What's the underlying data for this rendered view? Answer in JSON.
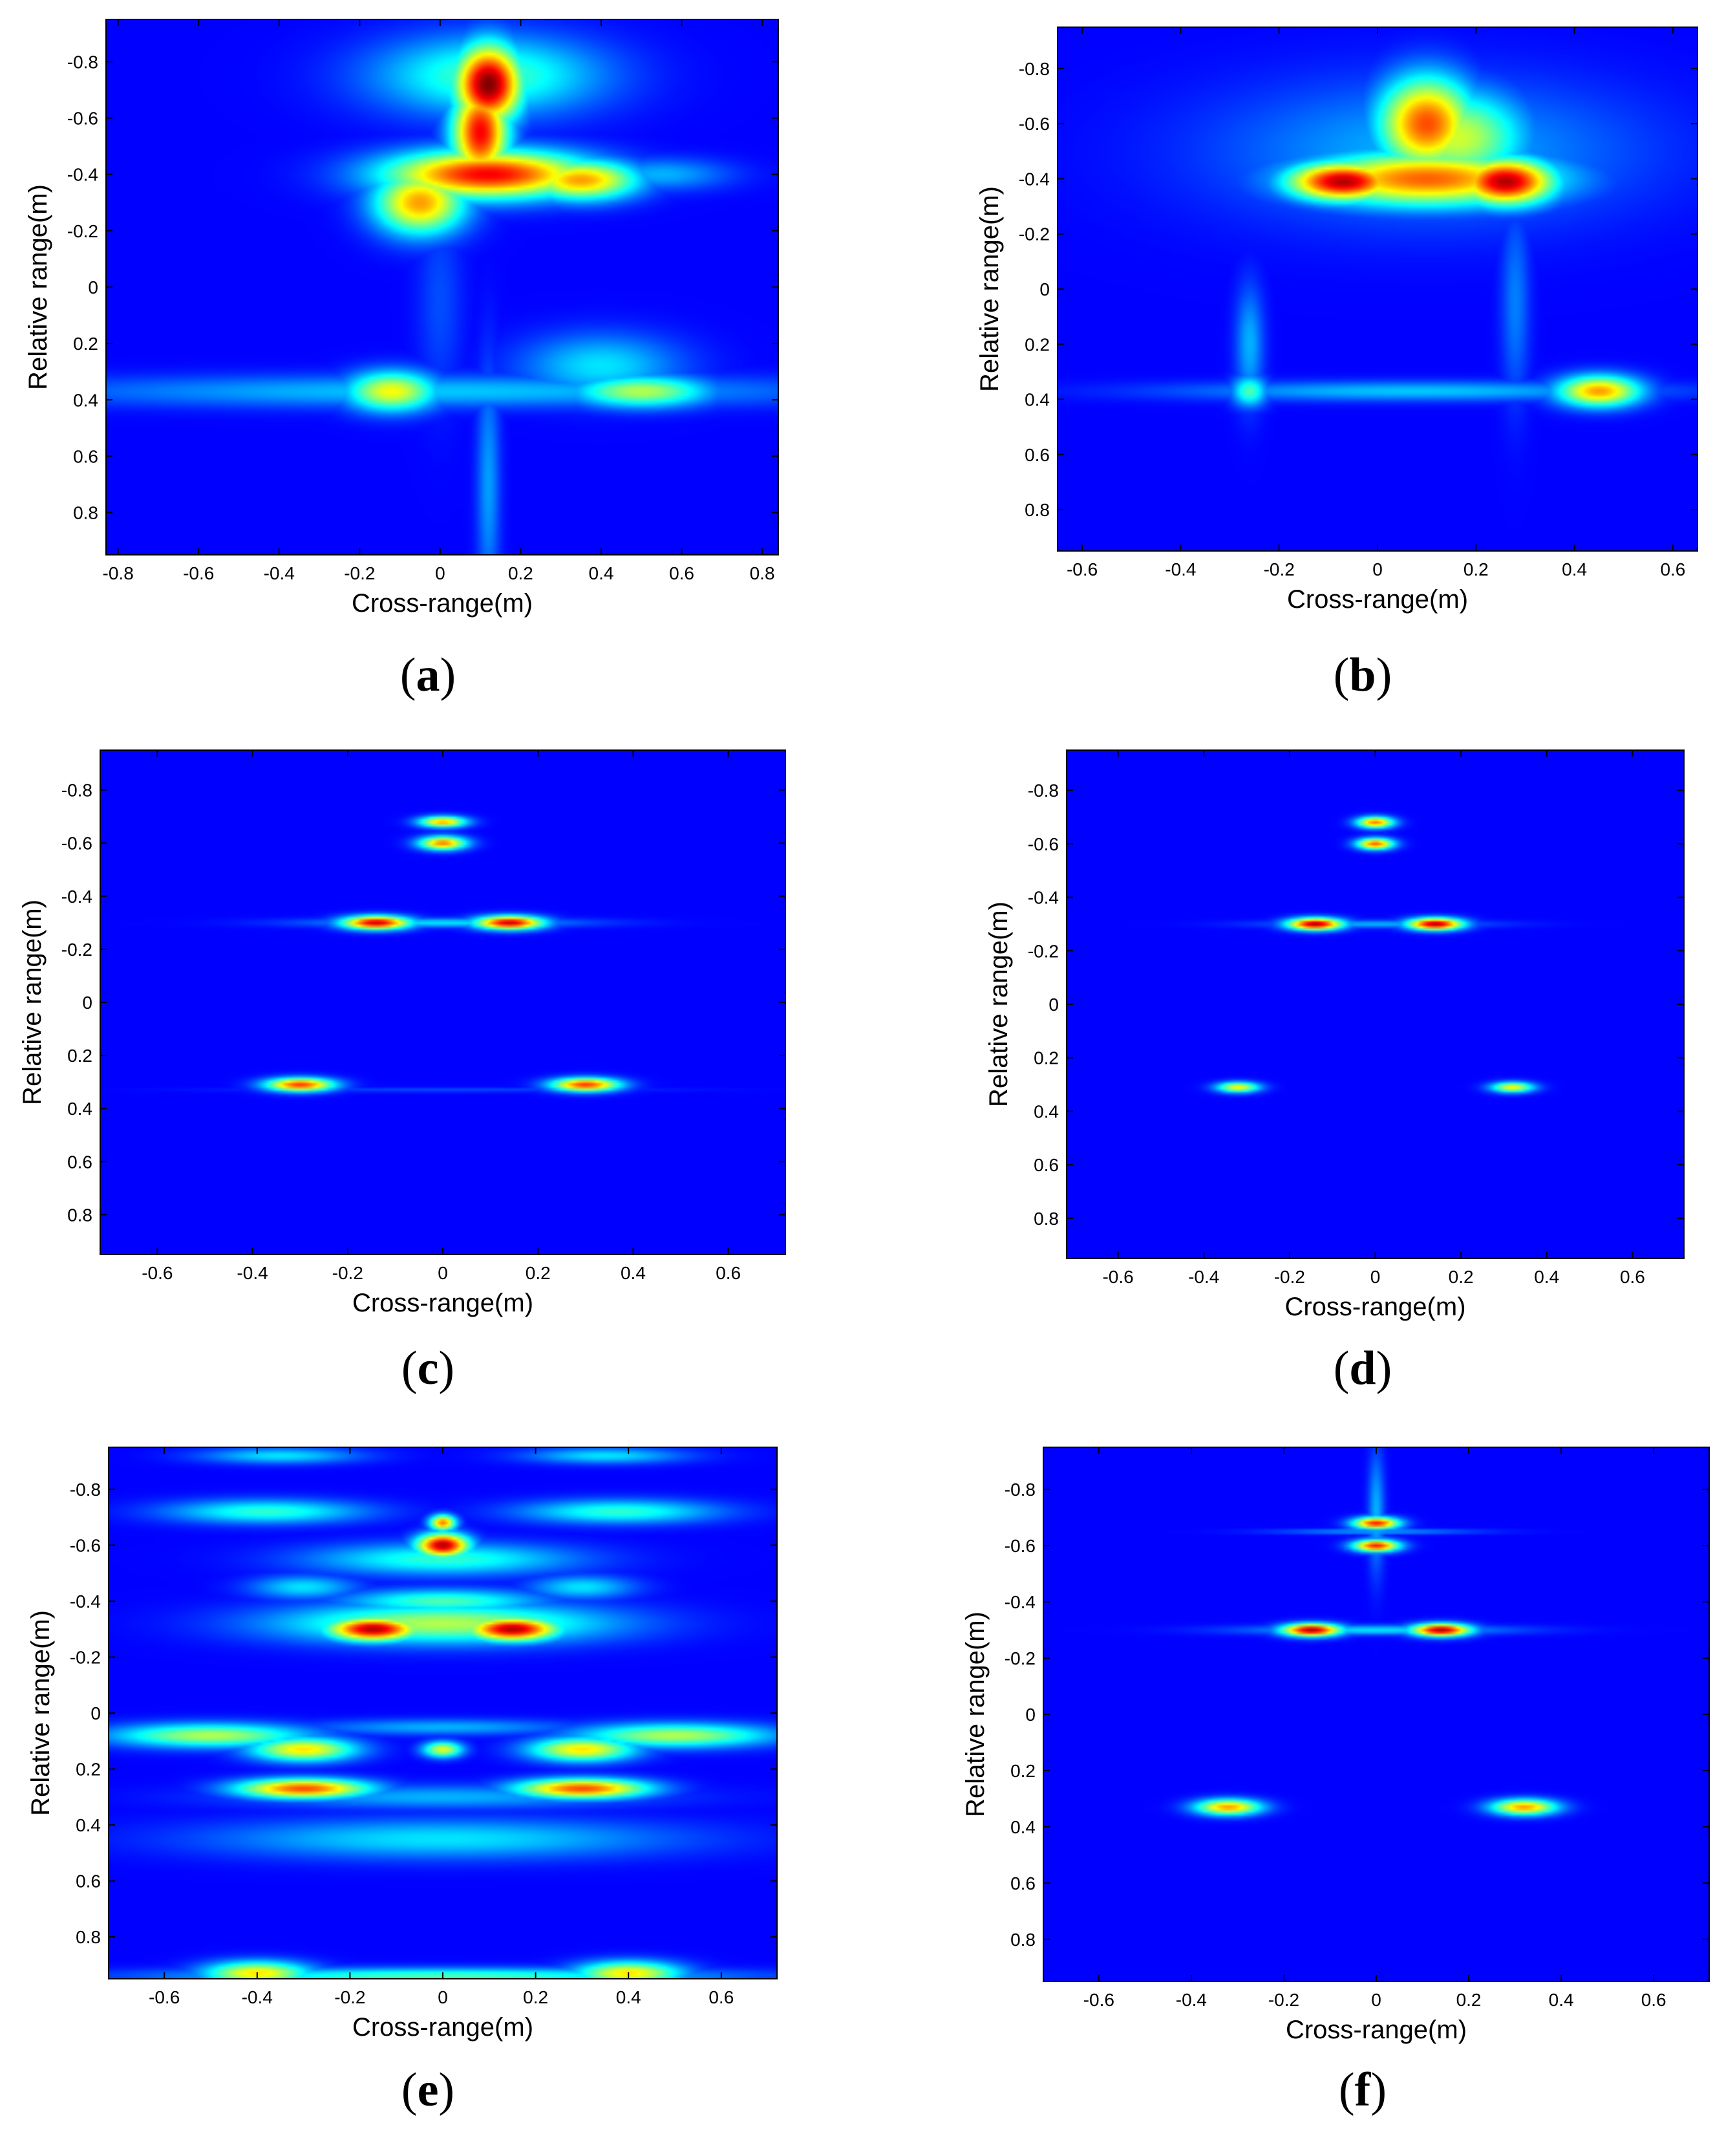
{
  "chart_data": [
    {
      "panel": "a",
      "type": "heatmap",
      "xlabel": "Cross-range(m)",
      "ylabel": "Relative range(m)",
      "xlim": [
        -0.83,
        0.84
      ],
      "ylim": [
        -0.95,
        0.95
      ],
      "xticks": [
        "-0.8",
        "-0.6",
        "-0.4",
        "-0.2",
        "0",
        "0.2",
        "0.4",
        "0.6",
        "0.8"
      ],
      "yticks": [
        "-0.8",
        "-0.6",
        "-0.4",
        "-0.2",
        "0",
        "0.2",
        "0.4",
        "0.6",
        "0.8"
      ],
      "hotspots": [
        {
          "x": 0.12,
          "y": -0.72,
          "sx": 0.06,
          "sy": 0.1,
          "v": 1.0
        },
        {
          "x": 0.1,
          "y": -0.55,
          "sx": 0.05,
          "sy": 0.12,
          "v": 0.88
        },
        {
          "x": 0.12,
          "y": -0.4,
          "sx": 0.18,
          "sy": 0.06,
          "v": 0.88
        },
        {
          "x": 0.35,
          "y": -0.38,
          "sx": 0.1,
          "sy": 0.05,
          "v": 0.72
        },
        {
          "x": -0.05,
          "y": -0.3,
          "sx": 0.08,
          "sy": 0.08,
          "v": 0.72
        },
        {
          "x": 0.12,
          "y": -0.75,
          "sx": 0.2,
          "sy": 0.1,
          "v": 0.45
        },
        {
          "x": 0.55,
          "y": -0.4,
          "sx": 0.12,
          "sy": 0.04,
          "v": 0.3
        },
        {
          "x": -0.12,
          "y": 0.37,
          "sx": 0.08,
          "sy": 0.05,
          "v": 0.62
        },
        {
          "x": 0.5,
          "y": 0.37,
          "sx": 0.12,
          "sy": 0.04,
          "v": 0.55
        },
        {
          "x": 0.4,
          "y": 0.28,
          "sx": 0.14,
          "sy": 0.08,
          "v": 0.35
        },
        {
          "x": 0.0,
          "y": 0.37,
          "sx": 0.7,
          "sy": 0.04,
          "v": 0.32
        },
        {
          "x": 0.12,
          "y": 0.7,
          "sx": 0.02,
          "sy": 0.3,
          "v": 0.28
        },
        {
          "x": 0.0,
          "y": 0.05,
          "sx": 0.04,
          "sy": 0.25,
          "v": 0.2
        }
      ]
    },
    {
      "panel": "b",
      "type": "heatmap",
      "xlabel": "Cross-range(m)",
      "ylabel": "Relative range(m)",
      "xlim": [
        -0.65,
        0.65
      ],
      "ylim": [
        -0.95,
        0.95
      ],
      "xticks": [
        "-0.6",
        "-0.4",
        "-0.2",
        "0",
        "0.2",
        "0.4",
        "0.6"
      ],
      "yticks": [
        "-0.8",
        "-0.6",
        "-0.4",
        "-0.2",
        "0",
        "0.2",
        "0.4",
        "0.6",
        "0.8"
      ],
      "hotspots": [
        {
          "x": -0.07,
          "y": -0.39,
          "sx": 0.08,
          "sy": 0.05,
          "v": 0.95
        },
        {
          "x": 0.26,
          "y": -0.39,
          "sx": 0.07,
          "sy": 0.06,
          "v": 0.95
        },
        {
          "x": 0.1,
          "y": -0.6,
          "sx": 0.07,
          "sy": 0.12,
          "v": 0.8
        },
        {
          "x": 0.1,
          "y": -0.4,
          "sx": 0.18,
          "sy": 0.07,
          "v": 0.78
        },
        {
          "x": 0.16,
          "y": -0.55,
          "sx": 0.1,
          "sy": 0.12,
          "v": 0.58
        },
        {
          "x": 0.1,
          "y": -0.5,
          "sx": 0.3,
          "sy": 0.18,
          "v": 0.3
        },
        {
          "x": 0.45,
          "y": 0.37,
          "sx": 0.06,
          "sy": 0.04,
          "v": 0.72
        },
        {
          "x": -0.26,
          "y": 0.37,
          "sx": 0.025,
          "sy": 0.04,
          "v": 0.45
        },
        {
          "x": 0.08,
          "y": 0.37,
          "sx": 0.35,
          "sy": 0.025,
          "v": 0.32
        },
        {
          "x": -0.26,
          "y": 0.2,
          "sx": 0.02,
          "sy": 0.15,
          "v": 0.3
        },
        {
          "x": 0.28,
          "y": 0.05,
          "sx": 0.02,
          "sy": 0.25,
          "v": 0.25
        }
      ]
    },
    {
      "panel": "c",
      "type": "heatmap",
      "xlabel": "Cross-range(m)",
      "ylabel": "Relative range(m)",
      "xlim": [
        -0.72,
        0.72
      ],
      "ylim": [
        -0.95,
        0.95
      ],
      "xticks": [
        "-0.6",
        "-0.4",
        "-0.2",
        "0",
        "0.2",
        "0.4",
        "0.6"
      ],
      "yticks": [
        "-0.8",
        "-0.6",
        "-0.4",
        "-0.2",
        "0",
        "0.2",
        "0.4",
        "0.6",
        "0.8"
      ],
      "hotspots": [
        {
          "x": 0.0,
          "y": -0.68,
          "sx": 0.035,
          "sy": 0.015,
          "v": 0.7
        },
        {
          "x": 0.0,
          "y": -0.6,
          "sx": 0.035,
          "sy": 0.018,
          "v": 0.75
        },
        {
          "x": -0.14,
          "y": -0.3,
          "sx": 0.05,
          "sy": 0.018,
          "v": 0.92
        },
        {
          "x": 0.14,
          "y": -0.3,
          "sx": 0.05,
          "sy": 0.018,
          "v": 0.92
        },
        {
          "x": 0.0,
          "y": -0.3,
          "sx": 0.2,
          "sy": 0.012,
          "v": 0.35
        },
        {
          "x": -0.3,
          "y": 0.31,
          "sx": 0.05,
          "sy": 0.018,
          "v": 0.82
        },
        {
          "x": 0.3,
          "y": 0.31,
          "sx": 0.05,
          "sy": 0.018,
          "v": 0.82
        },
        {
          "x": 0.0,
          "y": 0.33,
          "sx": 0.3,
          "sy": 0.006,
          "v": 0.2
        }
      ]
    },
    {
      "panel": "d",
      "type": "heatmap",
      "xlabel": "Cross-range(m)",
      "ylabel": "Relative range(m)",
      "xlim": [
        -0.72,
        0.72
      ],
      "ylim": [
        -0.95,
        0.95
      ],
      "xticks": [
        "-0.6",
        "-0.4",
        "-0.2",
        "0",
        "0.2",
        "0.4",
        "0.6"
      ],
      "yticks": [
        "-0.8",
        "-0.6",
        "-0.4",
        "-0.2",
        "0",
        "0.2",
        "0.4",
        "0.6",
        "0.8"
      ],
      "hotspots": [
        {
          "x": 0.0,
          "y": -0.68,
          "sx": 0.03,
          "sy": 0.015,
          "v": 0.75
        },
        {
          "x": 0.0,
          "y": -0.6,
          "sx": 0.03,
          "sy": 0.015,
          "v": 0.78
        },
        {
          "x": -0.14,
          "y": -0.3,
          "sx": 0.045,
          "sy": 0.016,
          "v": 0.95
        },
        {
          "x": 0.14,
          "y": -0.3,
          "sx": 0.045,
          "sy": 0.016,
          "v": 0.95
        },
        {
          "x": 0.0,
          "y": -0.3,
          "sx": 0.18,
          "sy": 0.01,
          "v": 0.3
        },
        {
          "x": -0.32,
          "y": 0.31,
          "sx": 0.035,
          "sy": 0.014,
          "v": 0.62
        },
        {
          "x": 0.32,
          "y": 0.31,
          "sx": 0.035,
          "sy": 0.014,
          "v": 0.62
        }
      ]
    },
    {
      "panel": "e",
      "type": "heatmap",
      "xlabel": "Cross-range(m)",
      "ylabel": "Relative range(m)",
      "xlim": [
        -0.72,
        0.72
      ],
      "ylim": [
        -0.95,
        0.95
      ],
      "xticks": [
        "-0.6",
        "-0.4",
        "-0.2",
        "0",
        "0.2",
        "0.4",
        "0.6"
      ],
      "yticks": [
        "-0.8",
        "-0.6",
        "-0.4",
        "-0.2",
        "0",
        "0.2",
        "0.4",
        "0.6",
        "0.8"
      ],
      "hotspots": [
        {
          "x": 0.0,
          "y": -0.6,
          "sx": 0.04,
          "sy": 0.03,
          "v": 0.95
        },
        {
          "x": 0.0,
          "y": -0.68,
          "sx": 0.02,
          "sy": 0.02,
          "v": 0.75
        },
        {
          "x": 0.0,
          "y": -0.55,
          "sx": 0.2,
          "sy": 0.04,
          "v": 0.42
        },
        {
          "x": -0.15,
          "y": -0.3,
          "sx": 0.07,
          "sy": 0.03,
          "v": 0.95
        },
        {
          "x": 0.15,
          "y": -0.3,
          "sx": 0.07,
          "sy": 0.03,
          "v": 0.95
        },
        {
          "x": 0.0,
          "y": -0.32,
          "sx": 0.25,
          "sy": 0.05,
          "v": 0.55
        },
        {
          "x": 0.0,
          "y": -0.4,
          "sx": 0.15,
          "sy": 0.03,
          "v": 0.45
        },
        {
          "x": -0.38,
          "y": -0.72,
          "sx": 0.15,
          "sy": 0.03,
          "v": 0.42
        },
        {
          "x": 0.38,
          "y": -0.72,
          "sx": 0.15,
          "sy": 0.03,
          "v": 0.42
        },
        {
          "x": -0.35,
          "y": -0.92,
          "sx": 0.12,
          "sy": 0.02,
          "v": 0.35
        },
        {
          "x": 0.35,
          "y": -0.92,
          "sx": 0.12,
          "sy": 0.02,
          "v": 0.35
        },
        {
          "x": -0.3,
          "y": -0.45,
          "sx": 0.08,
          "sy": 0.03,
          "v": 0.35
        },
        {
          "x": 0.3,
          "y": -0.45,
          "sx": 0.08,
          "sy": 0.03,
          "v": 0.35
        },
        {
          "x": 0.0,
          "y": 0.05,
          "sx": 0.2,
          "sy": 0.02,
          "v": 0.3
        },
        {
          "x": -0.5,
          "y": 0.08,
          "sx": 0.15,
          "sy": 0.03,
          "v": 0.55
        },
        {
          "x": 0.5,
          "y": 0.08,
          "sx": 0.15,
          "sy": 0.03,
          "v": 0.55
        },
        {
          "x": -0.3,
          "y": 0.13,
          "sx": 0.08,
          "sy": 0.03,
          "v": 0.65
        },
        {
          "x": 0.3,
          "y": 0.13,
          "sx": 0.08,
          "sy": 0.03,
          "v": 0.65
        },
        {
          "x": 0.0,
          "y": 0.13,
          "sx": 0.03,
          "sy": 0.02,
          "v": 0.6
        },
        {
          "x": -0.3,
          "y": 0.27,
          "sx": 0.1,
          "sy": 0.025,
          "v": 0.8
        },
        {
          "x": 0.3,
          "y": 0.27,
          "sx": 0.1,
          "sy": 0.025,
          "v": 0.8
        },
        {
          "x": 0.0,
          "y": 0.3,
          "sx": 0.3,
          "sy": 0.03,
          "v": 0.3
        },
        {
          "x": 0.0,
          "y": 0.45,
          "sx": 0.35,
          "sy": 0.05,
          "v": 0.35
        },
        {
          "x": -0.4,
          "y": 0.93,
          "sx": 0.08,
          "sy": 0.03,
          "v": 0.65
        },
        {
          "x": 0.4,
          "y": 0.93,
          "sx": 0.08,
          "sy": 0.03,
          "v": 0.65
        },
        {
          "x": 0.0,
          "y": 0.94,
          "sx": 0.4,
          "sy": 0.02,
          "v": 0.45
        }
      ]
    },
    {
      "panel": "f",
      "type": "heatmap",
      "xlabel": "Cross-range(m)",
      "ylabel": "Relative range(m)",
      "xlim": [
        -0.72,
        0.72
      ],
      "ylim": [
        -0.95,
        0.95
      ],
      "xticks": [
        "-0.6",
        "-0.4",
        "-0.2",
        "0",
        "0.2",
        "0.4",
        "0.6"
      ],
      "yticks": [
        "-0.8",
        "-0.6",
        "-0.4",
        "-0.2",
        "0",
        "0.2",
        "0.4",
        "0.6",
        "0.8"
      ],
      "hotspots": [
        {
          "x": 0.0,
          "y": -0.68,
          "sx": 0.035,
          "sy": 0.015,
          "v": 0.85
        },
        {
          "x": 0.0,
          "y": -0.6,
          "sx": 0.035,
          "sy": 0.015,
          "v": 0.85
        },
        {
          "x": 0.0,
          "y": -0.65,
          "sx": 0.15,
          "sy": 0.006,
          "v": 0.3
        },
        {
          "x": 0.0,
          "y": -0.72,
          "sx": 0.012,
          "sy": 0.15,
          "v": 0.3
        },
        {
          "x": -0.14,
          "y": -0.3,
          "sx": 0.045,
          "sy": 0.016,
          "v": 0.95
        },
        {
          "x": 0.14,
          "y": -0.3,
          "sx": 0.045,
          "sy": 0.016,
          "v": 0.95
        },
        {
          "x": 0.0,
          "y": -0.3,
          "sx": 0.2,
          "sy": 0.012,
          "v": 0.35
        },
        {
          "x": -0.32,
          "y": 0.33,
          "sx": 0.05,
          "sy": 0.02,
          "v": 0.72
        },
        {
          "x": 0.32,
          "y": 0.33,
          "sx": 0.05,
          "sy": 0.02,
          "v": 0.72
        }
      ]
    }
  ],
  "panel_labels": {
    "a": {
      "open": "(",
      "letter": "a",
      "close": ")"
    },
    "b": {
      "open": "(",
      "letter": "b",
      "close": ")"
    },
    "c": {
      "open": "(",
      "letter": "c",
      "close": ")"
    },
    "d": {
      "open": "(",
      "letter": "d",
      "close": ")"
    },
    "e": {
      "open": "(",
      "letter": "e",
      "close": ")"
    },
    "f": {
      "open": "(",
      "letter": "f",
      "close": ")"
    }
  }
}
